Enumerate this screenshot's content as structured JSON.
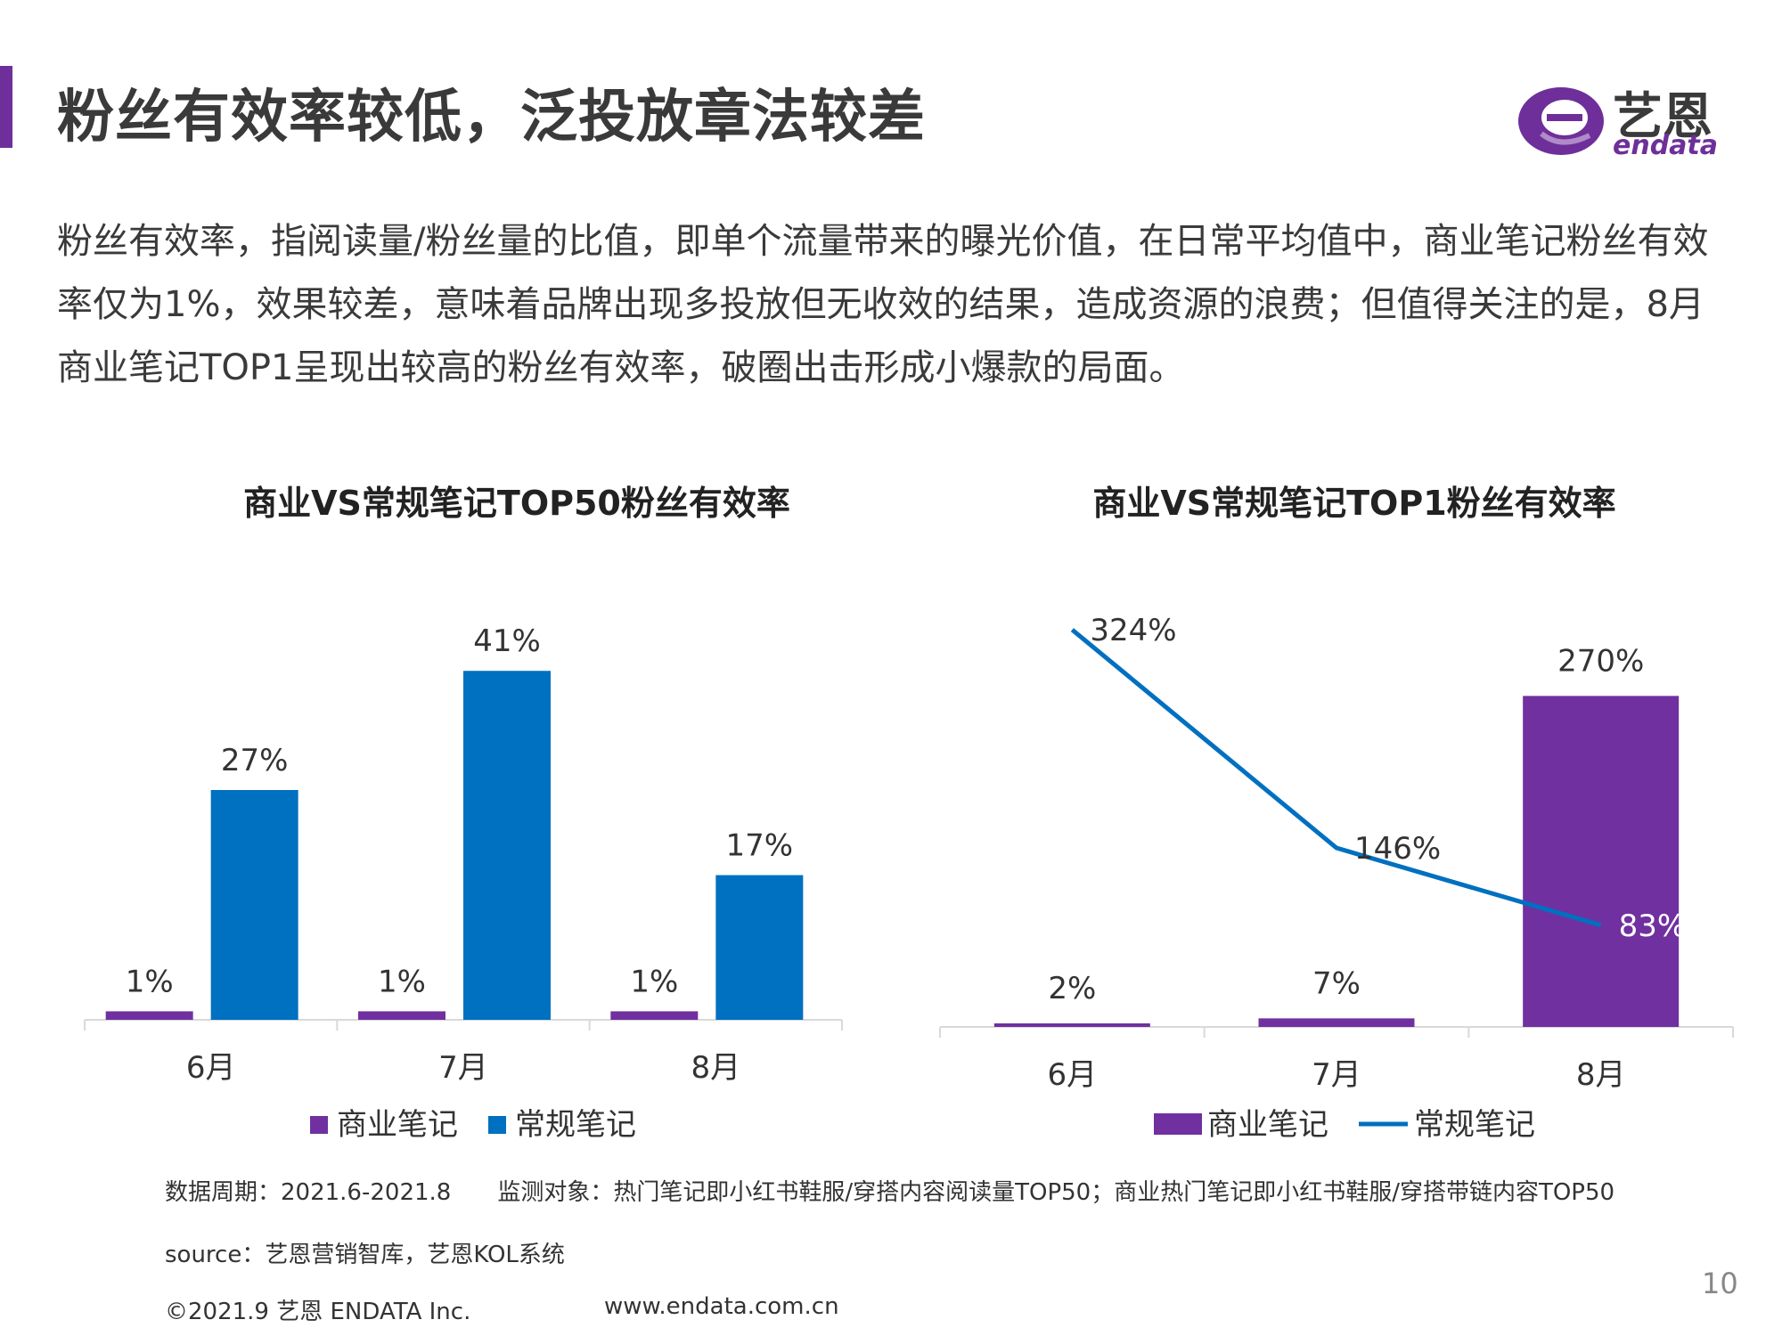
{
  "header": {
    "title": "粉丝有效率较低，泛投放章法较差",
    "logo_cn": "艺恩",
    "logo_en": "endata"
  },
  "intro": "粉丝有效率，指阅读量/粉丝量的比值，即单个流量带来的曝光价值，在日常平均值中，商业笔记粉丝有效率仅为1%，效果较差，意味着品牌出现多投放但无收效的结果，造成资源的浪费；但值得关注的是，8月商业笔记TOP1呈现出较高的粉丝有效率，破圈出击形成小爆款的局面。",
  "colors": {
    "purple": "#7030a0",
    "blue": "#0070c0",
    "accent": "#6e2f9a"
  },
  "chart_data": [
    {
      "type": "bar",
      "title": "商业VS常规笔记TOP50粉丝有效率",
      "categories": [
        "6月",
        "7月",
        "8月"
      ],
      "series": [
        {
          "name": "商业笔记",
          "values": [
            1,
            1,
            1
          ],
          "labels": [
            "1%",
            "1%",
            "1%"
          ],
          "color": "#7030a0"
        },
        {
          "name": "常规笔记",
          "values": [
            27,
            41,
            17
          ],
          "labels": [
            "27%",
            "41%",
            "17%"
          ],
          "color": "#0070c0"
        }
      ],
      "ylim": [
        0,
        45
      ],
      "legend": "bottom",
      "grid": false
    },
    {
      "type": "bar",
      "title": "商业VS常规笔记TOP1粉丝有效率",
      "categories": [
        "6月",
        "7月",
        "8月"
      ],
      "series": [
        {
          "name": "商业笔记",
          "kind": "bar",
          "values": [
            2,
            7,
            270
          ],
          "labels": [
            "2%",
            "7%",
            "270%"
          ],
          "color": "#7030a0"
        },
        {
          "name": "常规笔记",
          "kind": "line",
          "values": [
            324,
            146,
            83
          ],
          "labels": [
            "324%",
            "146%",
            "83%"
          ],
          "color": "#0070c0"
        }
      ],
      "ylim": [
        0,
        340
      ],
      "legend": "bottom",
      "grid": false
    }
  ],
  "footer": {
    "period": "数据周期：2021.6-2021.8　　监测对象：热门笔记即小红书鞋服/穿搭内容阅读量TOP50；商业热门笔记即小红书鞋服/穿搭带链内容TOP50",
    "source": "source：艺恩营销智库，艺恩KOL系统",
    "copyright": "©2021.9 艺恩 ENDATA Inc.",
    "website": "www.endata.com.cn",
    "page_number": "10"
  }
}
